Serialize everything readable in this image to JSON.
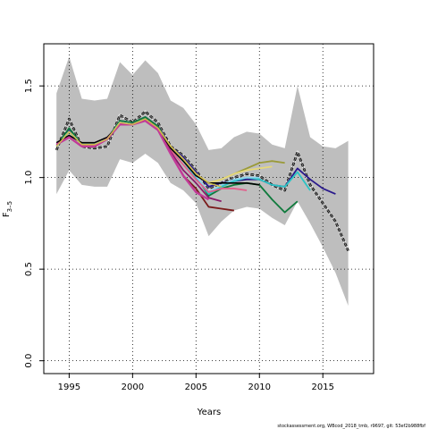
{
  "chart_data": {
    "type": "line",
    "xlabel": "Years",
    "ylabel": "F",
    "ylabel_sub": "3–5",
    "xlim": [
      1993,
      2019
    ],
    "ylim": [
      -0.07,
      1.73
    ],
    "xticks": [
      1995,
      2000,
      2005,
      2010,
      2015
    ],
    "yticks": [
      0.0,
      0.5,
      1.0,
      1.5
    ],
    "ytick_labels": [
      "0.0",
      "0.5",
      "1.0",
      "1.5"
    ],
    "grid": "dotted",
    "footnote": "stockassessment.org, WBcod_2018_tmb, r9697, git: 53ef2b988fbf",
    "band": {
      "x": [
        1994,
        1995,
        1996,
        1997,
        1998,
        1999,
        2000,
        2001,
        2002,
        2003,
        2004,
        2005,
        2006,
        2007,
        2008,
        2009,
        2010,
        2011,
        2012,
        2013,
        2014,
        2015,
        2016,
        2017
      ],
      "upper": [
        1.46,
        1.66,
        1.43,
        1.42,
        1.43,
        1.63,
        1.56,
        1.64,
        1.57,
        1.42,
        1.38,
        1.29,
        1.15,
        1.16,
        1.22,
        1.25,
        1.24,
        1.18,
        1.16,
        1.5,
        1.22,
        1.17,
        1.16,
        1.2
      ],
      "lower": [
        0.91,
        1.04,
        0.96,
        0.95,
        0.95,
        1.1,
        1.08,
        1.13,
        1.08,
        0.97,
        0.93,
        0.86,
        0.68,
        0.76,
        0.82,
        0.84,
        0.83,
        0.78,
        0.74,
        0.87,
        0.75,
        0.62,
        0.48,
        0.3
      ]
    },
    "series": [
      {
        "color": "#000000",
        "dashed": true,
        "width": 2.6,
        "x": [
          1994,
          1995,
          1996,
          1997,
          1998,
          1999,
          2000,
          2001,
          2002,
          2003,
          2004,
          2005,
          2006,
          2007,
          2008,
          2009,
          2010,
          2011,
          2012,
          2013,
          2014,
          2015,
          2016,
          2017
        ],
        "y": [
          1.15,
          1.32,
          1.17,
          1.16,
          1.17,
          1.34,
          1.3,
          1.36,
          1.3,
          1.17,
          1.12,
          1.04,
          0.94,
          0.97,
          1.0,
          1.02,
          1.01,
          0.96,
          0.93,
          1.14,
          0.96,
          0.86,
          0.76,
          0.6
        ]
      },
      {
        "color": "#888888",
        "dashed": false,
        "width": 1.0,
        "x": [
          1994,
          1995,
          1996,
          1997,
          1998,
          1999,
          2000,
          2001,
          2002,
          2003,
          2004,
          2005,
          2006,
          2007,
          2008,
          2009,
          2010,
          2011,
          2012,
          2013,
          2014,
          2015,
          2016,
          2017
        ],
        "y": [
          1.15,
          1.32,
          1.17,
          1.16,
          1.17,
          1.34,
          1.3,
          1.36,
          1.3,
          1.17,
          1.12,
          1.04,
          0.94,
          0.97,
          1.0,
          1.02,
          1.01,
          0.96,
          0.93,
          1.14,
          0.96,
          0.86,
          0.76,
          0.6
        ]
      },
      {
        "color": "#2a1a8c",
        "dashed": false,
        "width": 1.8,
        "x": [
          1994,
          1995,
          1996,
          1997,
          1998,
          1999,
          2000,
          2001,
          2002,
          2003,
          2004,
          2005,
          2006,
          2007,
          2008,
          2009,
          2010,
          2011,
          2012,
          2013,
          2014,
          2015,
          2016
        ],
        "y": [
          1.17,
          1.26,
          1.18,
          1.18,
          1.21,
          1.31,
          1.3,
          1.33,
          1.28,
          1.17,
          1.11,
          1.03,
          0.95,
          0.97,
          0.98,
          0.99,
          0.99,
          0.96,
          0.95,
          1.05,
          0.99,
          0.94,
          0.91
        ]
      },
      {
        "color": "#0f7a3c",
        "dashed": false,
        "width": 1.8,
        "x": [
          1994,
          1995,
          1996,
          1997,
          1998,
          1999,
          2000,
          2001,
          2002,
          2003,
          2004,
          2005,
          2006,
          2007,
          2008,
          2009,
          2010,
          2011,
          2012,
          2013
        ],
        "y": [
          1.17,
          1.27,
          1.18,
          1.18,
          1.21,
          1.31,
          1.3,
          1.33,
          1.28,
          1.16,
          1.09,
          1.01,
          0.9,
          0.94,
          0.96,
          0.97,
          0.96,
          0.88,
          0.81,
          0.87
        ]
      },
      {
        "color": "#2bc4c4",
        "dashed": false,
        "width": 1.8,
        "x": [
          1994,
          1995,
          1996,
          1997,
          1998,
          1999,
          2000,
          2001,
          2002,
          2003,
          2004,
          2005,
          2006,
          2007,
          2008,
          2009,
          2010,
          2011,
          2012,
          2013,
          2014
        ],
        "y": [
          1.17,
          1.25,
          1.18,
          1.18,
          1.21,
          1.3,
          1.29,
          1.32,
          1.27,
          1.16,
          1.09,
          1.0,
          0.91,
          0.95,
          0.98,
          1.0,
          0.99,
          0.96,
          0.95,
          1.03,
          0.93
        ]
      },
      {
        "color": "#9a9a38",
        "dashed": false,
        "width": 1.8,
        "x": [
          1994,
          1995,
          1996,
          1997,
          1998,
          1999,
          2000,
          2001,
          2002,
          2003,
          2004,
          2005,
          2006,
          2007,
          2008,
          2009,
          2010,
          2011,
          2012
        ],
        "y": [
          1.17,
          1.25,
          1.18,
          1.18,
          1.21,
          1.3,
          1.29,
          1.32,
          1.27,
          1.17,
          1.1,
          1.02,
          0.97,
          0.99,
          1.02,
          1.05,
          1.08,
          1.09,
          1.08
        ]
      },
      {
        "color": "#e6d97a",
        "dashed": false,
        "width": 1.8,
        "x": [
          1994,
          1995,
          1996,
          1997,
          1998,
          1999,
          2000,
          2001,
          2002,
          2003,
          2004,
          2005,
          2006,
          2007,
          2008,
          2009,
          2010,
          2011
        ],
        "y": [
          1.17,
          1.25,
          1.18,
          1.18,
          1.21,
          1.3,
          1.29,
          1.32,
          1.27,
          1.17,
          1.1,
          1.02,
          0.97,
          0.99,
          1.02,
          1.04,
          1.05,
          1.06
        ]
      },
      {
        "color": "#8fd4ee",
        "dashed": false,
        "width": 1.8,
        "x": [
          1994,
          1995,
          1996,
          1997,
          1998,
          1999,
          2000,
          2001,
          2002,
          2003,
          2004,
          2005,
          2006,
          2007,
          2008,
          2009,
          2010
        ],
        "y": [
          1.17,
          1.25,
          1.18,
          1.18,
          1.21,
          1.3,
          1.29,
          1.32,
          1.27,
          1.16,
          1.09,
          1.01,
          0.92,
          0.96,
          0.99,
          1.0,
          1.0
        ]
      },
      {
        "color": "#e2608c",
        "dashed": false,
        "width": 1.8,
        "x": [
          1994,
          1995,
          1996,
          1997,
          1998,
          1999,
          2000,
          2001,
          2002,
          2003,
          2004,
          2005,
          2006,
          2007,
          2008,
          2009
        ],
        "y": [
          1.18,
          1.22,
          1.17,
          1.17,
          1.21,
          1.29,
          1.29,
          1.31,
          1.27,
          1.15,
          1.07,
          0.99,
          0.92,
          0.94,
          0.94,
          0.93
        ]
      },
      {
        "color": "#8a1a6a",
        "dashed": false,
        "width": 1.8,
        "x": [
          1994,
          1995,
          1996,
          1997,
          1998,
          1999,
          2000,
          2001,
          2002,
          2003,
          2004,
          2005,
          2006,
          2007
        ],
        "y": [
          1.18,
          1.22,
          1.17,
          1.17,
          1.21,
          1.29,
          1.29,
          1.31,
          1.26,
          1.14,
          1.04,
          0.97,
          0.89,
          0.87
        ]
      },
      {
        "color": "#7a1a1a",
        "dashed": false,
        "width": 1.8,
        "x": [
          1994,
          1995,
          1996,
          1997,
          1998,
          1999,
          2000,
          2001,
          2002,
          2003,
          2004,
          2005,
          2006,
          2007,
          2008
        ],
        "y": [
          1.18,
          1.22,
          1.17,
          1.17,
          1.21,
          1.29,
          1.29,
          1.31,
          1.26,
          1.13,
          1.01,
          0.94,
          0.84,
          0.83,
          0.82
        ]
      },
      {
        "color": "#000000",
        "dashed": false,
        "width": 1.6,
        "x": [
          1994,
          1995,
          1996,
          1997,
          1998,
          1999,
          2000,
          2001,
          2002,
          2003,
          2004,
          2005,
          2006,
          2007,
          2008,
          2009,
          2010
        ],
        "y": [
          1.19,
          1.23,
          1.19,
          1.19,
          1.22,
          1.29,
          1.29,
          1.32,
          1.27,
          1.16,
          1.09,
          1.01,
          0.97,
          0.97,
          0.97,
          0.97,
          0.96
        ]
      },
      {
        "color": "#c23a98",
        "dashed": false,
        "width": 2.4,
        "x": [
          1994,
          1995,
          1996,
          1997,
          1998,
          1999,
          2000,
          2001,
          2002,
          2003,
          2004,
          2005,
          2006
        ],
        "y": [
          1.18,
          1.22,
          1.17,
          1.17,
          1.21,
          1.29,
          1.29,
          1.31,
          1.26,
          1.13,
          1.01,
          0.92,
          0.88
        ]
      },
      {
        "color": "#d2be4c",
        "dashed": false,
        "width": 1.4,
        "x": [
          1994,
          1995,
          1996,
          1997,
          1998,
          1999,
          2000,
          2001,
          2002,
          2003,
          2004,
          2005,
          2006,
          2007
        ],
        "y": [
          1.17,
          1.25,
          1.18,
          1.18,
          1.21,
          1.3,
          1.29,
          1.32,
          1.27,
          1.17,
          1.1,
          1.02,
          0.97,
          0.95
        ]
      }
    ]
  }
}
